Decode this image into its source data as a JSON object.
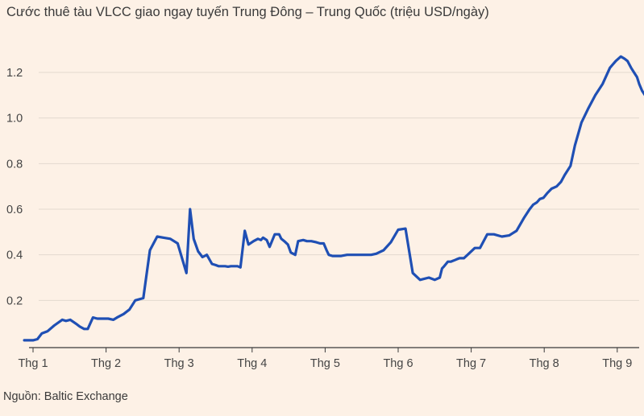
{
  "title": "Cước thuê tàu VLCC giao ngay tuyến Trung Đông – Trung Quốc (triệu USD/ngày)",
  "source": "Nguồn: Baltic Exchange",
  "colors": {
    "background": "#fdf1e6",
    "line": "#1f4fb4",
    "grid": "#e3d9cf",
    "axis": "#3a3a3a"
  },
  "chart_data": {
    "type": "line",
    "title": "Cước thuê tàu VLCC giao ngay tuyến Trung Đông – Trung Quốc (triệu USD/ngày)",
    "xlabel": "",
    "ylabel": "",
    "ylim": [
      0,
      1.3
    ],
    "xlim": [
      1,
      10
    ],
    "grid": true,
    "y_ticks": [
      {
        "value": 0.2,
        "label": "0.2"
      },
      {
        "value": 0.4,
        "label": "0.4"
      },
      {
        "value": 0.6,
        "label": "0.6"
      },
      {
        "value": 0.8,
        "label": "0.8"
      },
      {
        "value": 1.0,
        "label": "1.0"
      },
      {
        "value": 1.2,
        "label": "1.2"
      }
    ],
    "x_ticks": [
      {
        "value": 1,
        "label": "Thg 1"
      },
      {
        "value": 2,
        "label": "Thg 2"
      },
      {
        "value": 3,
        "label": "Thg 3"
      },
      {
        "value": 4,
        "label": "Thg 4"
      },
      {
        "value": 5,
        "label": "Thg 5"
      },
      {
        "value": 6,
        "label": "Thg 6"
      },
      {
        "value": 7,
        "label": "Thg 7"
      },
      {
        "value": 8,
        "label": "Thg 8"
      },
      {
        "value": 9,
        "label": "Thg 9"
      }
    ],
    "series": [
      {
        "color": "#1f4fb4",
        "x": [
          0.88,
          1.0,
          1.06,
          1.12,
          1.2,
          1.29,
          1.4,
          1.45,
          1.51,
          1.6,
          1.64,
          1.7,
          1.75,
          1.82,
          1.88,
          1.92,
          1.96,
          2.03,
          2.1,
          2.15,
          2.24,
          2.32,
          2.4,
          2.51,
          2.6,
          2.7,
          2.79,
          2.88,
          2.98,
          3.1,
          3.15,
          3.2,
          3.26,
          3.32,
          3.38,
          3.45,
          3.5,
          3.54,
          3.59,
          3.63,
          3.67,
          3.71,
          3.75,
          3.8,
          3.84,
          3.9,
          3.95,
          4.02,
          4.08,
          4.12,
          4.15,
          4.2,
          4.24,
          4.31,
          4.37,
          4.4,
          4.44,
          4.49,
          4.53,
          4.59,
          4.63,
          4.7,
          4.75,
          4.81,
          4.88,
          4.93,
          4.98,
          5.02,
          5.05,
          5.1,
          5.16,
          5.22,
          5.3,
          5.38,
          5.44,
          5.5,
          5.55,
          5.59,
          5.63,
          5.7,
          5.8,
          5.9,
          6.0,
          6.1,
          6.2,
          6.3,
          6.42,
          6.5,
          6.57,
          6.6,
          6.63,
          6.68,
          6.72,
          6.76,
          6.8,
          6.84,
          6.9,
          6.95,
          7.05,
          7.12,
          7.22,
          7.31,
          7.42,
          7.52,
          7.62,
          7.72,
          7.8,
          7.85,
          7.9,
          7.94,
          7.99,
          8.04,
          8.1,
          8.17,
          8.23,
          8.28,
          8.36,
          8.42,
          8.51,
          8.6,
          8.7,
          8.8,
          8.9,
          8.98,
          9.05,
          9.1,
          9.14,
          9.19,
          9.23,
          9.27,
          9.3,
          9.34,
          9.38,
          9.42,
          9.45,
          9.49,
          9.53
        ],
        "y": [
          0.025,
          0.025,
          0.03,
          0.055,
          0.065,
          0.09,
          0.115,
          0.11,
          0.115,
          0.095,
          0.085,
          0.075,
          0.075,
          0.125,
          0.12,
          0.12,
          0.12,
          0.12,
          0.115,
          0.125,
          0.14,
          0.16,
          0.2,
          0.21,
          0.42,
          0.48,
          0.475,
          0.47,
          0.45,
          0.32,
          0.6,
          0.47,
          0.415,
          0.39,
          0.4,
          0.36,
          0.355,
          0.35,
          0.35,
          0.35,
          0.348,
          0.35,
          0.35,
          0.35,
          0.345,
          0.505,
          0.445,
          0.46,
          0.47,
          0.465,
          0.475,
          0.465,
          0.435,
          0.49,
          0.49,
          0.47,
          0.46,
          0.445,
          0.41,
          0.4,
          0.46,
          0.465,
          0.46,
          0.46,
          0.455,
          0.45,
          0.45,
          0.42,
          0.4,
          0.395,
          0.395,
          0.395,
          0.4,
          0.4,
          0.4,
          0.4,
          0.4,
          0.4,
          0.4,
          0.405,
          0.42,
          0.455,
          0.51,
          0.515,
          0.32,
          0.29,
          0.3,
          0.29,
          0.3,
          0.34,
          0.35,
          0.37,
          0.37,
          0.375,
          0.38,
          0.385,
          0.385,
          0.4,
          0.43,
          0.43,
          0.49,
          0.49,
          0.48,
          0.485,
          0.505,
          0.56,
          0.6,
          0.62,
          0.63,
          0.645,
          0.65,
          0.67,
          0.69,
          0.7,
          0.72,
          0.75,
          0.79,
          0.88,
          0.98,
          1.04,
          1.1,
          1.15,
          1.22,
          1.25,
          1.27,
          1.26,
          1.25,
          1.22,
          1.2,
          1.18,
          1.15,
          1.12,
          1.1,
          1.08,
          1.06,
          1.04,
          1.02
        ],
        "note": ""
      }
    ]
  }
}
